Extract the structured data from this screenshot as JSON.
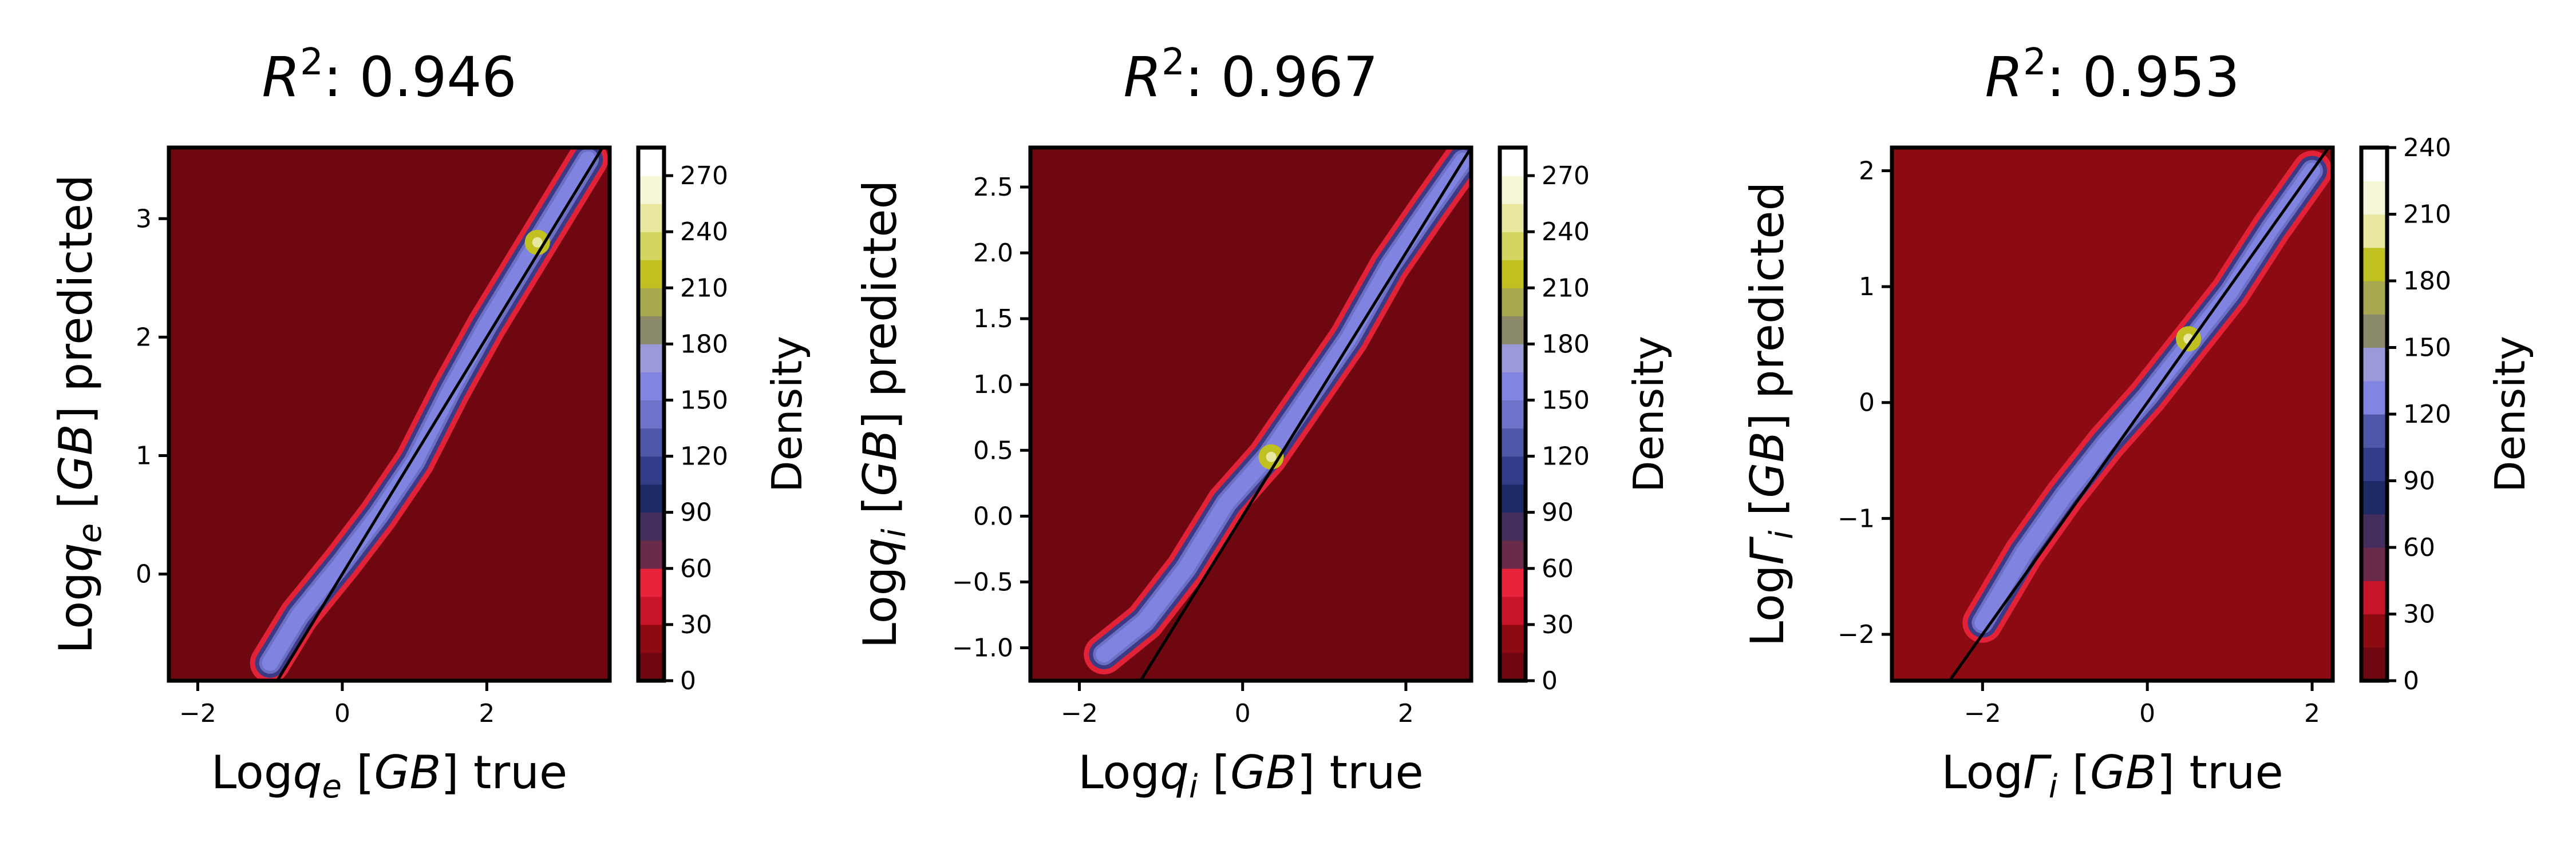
{
  "chart_data": [
    {
      "type": "heatmap",
      "subtype": "density-contour-with-identity-line",
      "title": {
        "text": "R",
        "sup": "2",
        "rest": ": 0.946"
      },
      "xlabel": {
        "pre": "Log",
        "sym": "q",
        "sub": "e",
        "post": " [",
        "unit": "GB",
        "end": "] true"
      },
      "ylabel": {
        "pre": "Log",
        "sym": "q",
        "sub": "e",
        "post": " [",
        "unit": "GB",
        "end": "] predicted"
      },
      "xlim": [
        -2.4,
        3.7
      ],
      "ylim": [
        -0.9,
        3.6
      ],
      "xticks": [
        -2,
        0,
        2
      ],
      "xtick_labels": [
        "−2",
        "0",
        "2"
      ],
      "yticks": [
        0,
        1,
        2,
        3
      ],
      "ytick_labels": [
        "0",
        "1",
        "2",
        "3"
      ],
      "background_color": "#6e070f",
      "ridge": [
        [
          -1.0,
          -0.75
        ],
        [
          -0.6,
          -0.35
        ],
        [
          0.0,
          0.1
        ],
        [
          0.5,
          0.5
        ],
        [
          1.0,
          0.95
        ],
        [
          1.5,
          1.55
        ],
        [
          2.0,
          2.1
        ],
        [
          2.6,
          2.7
        ],
        [
          3.0,
          3.1
        ],
        [
          3.4,
          3.5
        ]
      ],
      "peak": [
        2.7,
        2.8
      ],
      "colorbar": {
        "label": "Density",
        "vmin": 0,
        "vmax": 285,
        "ticks": [
          0,
          30,
          60,
          90,
          120,
          150,
          180,
          210,
          240,
          270
        ],
        "tick_labels": [
          "0",
          "30",
          "60",
          "90",
          "120",
          "150",
          "180",
          "210",
          "240",
          "270"
        ]
      }
    },
    {
      "type": "heatmap",
      "subtype": "density-contour-with-identity-line",
      "title": {
        "text": "R",
        "sup": "2",
        "rest": ": 0.967"
      },
      "xlabel": {
        "pre": "Log",
        "sym": "q",
        "sub": "i",
        "post": " [",
        "unit": "GB",
        "end": "] true"
      },
      "ylabel": {
        "pre": "Log",
        "sym": "q",
        "sub": "i",
        "post": " [",
        "unit": "GB",
        "end": "] predicted"
      },
      "xlim": [
        -2.6,
        2.8
      ],
      "ylim": [
        -1.25,
        2.8
      ],
      "xticks": [
        -2,
        0,
        2
      ],
      "xtick_labels": [
        "−2",
        "0",
        "2"
      ],
      "yticks": [
        -1.0,
        -0.5,
        0.0,
        0.5,
        1.0,
        1.5,
        2.0,
        2.5
      ],
      "ytick_labels": [
        "−1.0",
        "−0.5",
        "0.0",
        "0.5",
        "1.0",
        "1.5",
        "2.0",
        "2.5"
      ],
      "background_color": "#6e070f",
      "ridge": [
        [
          -1.7,
          -1.05
        ],
        [
          -1.2,
          -0.8
        ],
        [
          -0.7,
          -0.4
        ],
        [
          -0.2,
          0.1
        ],
        [
          0.3,
          0.45
        ],
        [
          0.8,
          0.9
        ],
        [
          1.3,
          1.35
        ],
        [
          1.8,
          1.9
        ],
        [
          2.3,
          2.35
        ],
        [
          2.7,
          2.7
        ]
      ],
      "peak": [
        0.35,
        0.45
      ],
      "colorbar": {
        "label": "Density",
        "vmin": 0,
        "vmax": 285,
        "ticks": [
          0,
          30,
          60,
          90,
          120,
          150,
          180,
          210,
          240,
          270
        ],
        "tick_labels": [
          "0",
          "30",
          "60",
          "90",
          "120",
          "150",
          "180",
          "210",
          "240",
          "270"
        ]
      }
    },
    {
      "type": "heatmap",
      "subtype": "density-contour-with-identity-line",
      "title": {
        "text": "R",
        "sup": "2",
        "rest": ": 0.953"
      },
      "xlabel": {
        "pre": "Log",
        "sym": "Γ",
        "sub": "i",
        "post": " [",
        "unit": "GB",
        "end": "] true"
      },
      "ylabel": {
        "pre": "Log",
        "sym": "Γ",
        "sub": "i",
        "post": " [",
        "unit": "GB",
        "end": "] predicted"
      },
      "xlim": [
        -3.1,
        2.25
      ],
      "ylim": [
        -2.4,
        2.2
      ],
      "xticks": [
        -2,
        0,
        2
      ],
      "xtick_labels": [
        "−2",
        "0",
        "2"
      ],
      "yticks": [
        -2,
        -1,
        0,
        1,
        2
      ],
      "ytick_labels": [
        "−2",
        "−1",
        "0",
        "1",
        "2"
      ],
      "background_color": "#8c0a12",
      "ridge": [
        [
          -2.0,
          -1.9
        ],
        [
          -1.5,
          -1.3
        ],
        [
          -1.0,
          -0.8
        ],
        [
          -0.5,
          -0.35
        ],
        [
          0.0,
          0.05
        ],
        [
          0.5,
          0.5
        ],
        [
          1.0,
          0.95
        ],
        [
          1.5,
          1.5
        ],
        [
          2.0,
          2.0
        ]
      ],
      "peak": [
        0.5,
        0.55
      ],
      "colorbar": {
        "label": "Density",
        "vmin": 0,
        "vmax": 240,
        "ticks": [
          0,
          30,
          60,
          90,
          120,
          150,
          180,
          210,
          240
        ],
        "tick_labels": [
          "0",
          "30",
          "60",
          "90",
          "120",
          "150",
          "180",
          "210",
          "240"
        ]
      }
    }
  ],
  "colormap": [
    "#6e070f",
    "#8c0a12",
    "#c81428",
    "#e8243a",
    "#6a2a4a",
    "#442e5e",
    "#1c2a66",
    "#333c88",
    "#4e56a8",
    "#6e72c8",
    "#8284e2",
    "#9a9ad8",
    "#8a8a6a",
    "#a8a850",
    "#c0c020",
    "#d4d460",
    "#e8e8a0",
    "#f6f6d8",
    "#ffffff"
  ]
}
